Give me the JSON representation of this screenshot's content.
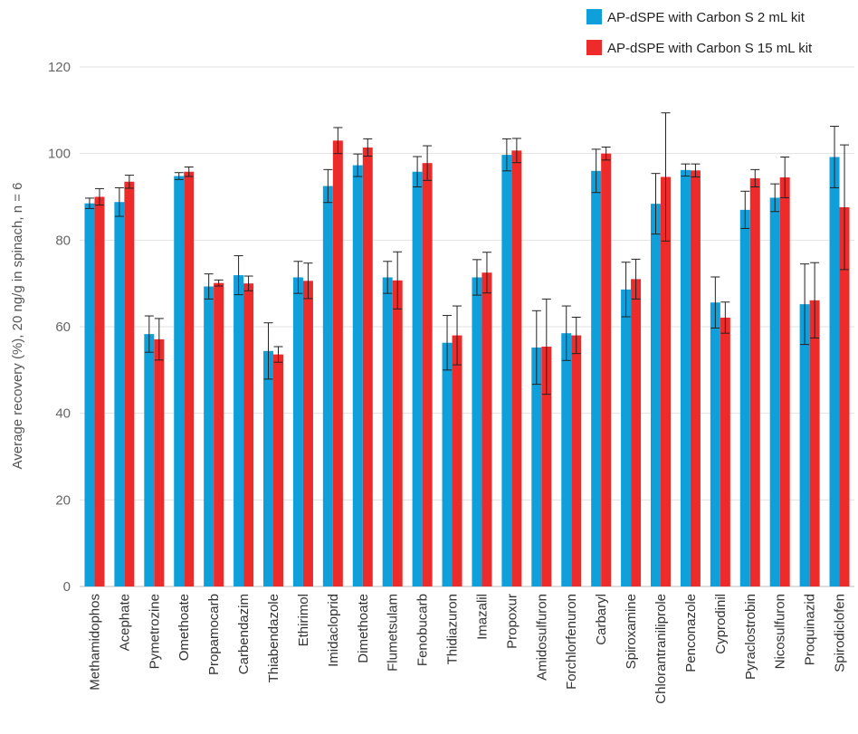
{
  "chart_data": {
    "type": "bar",
    "ylabel": "Average recovery (%), 20 ng/g in spinach, n = 6",
    "xlabel": "",
    "ylim": [
      0,
      120
    ],
    "yticks": [
      0,
      20,
      40,
      60,
      80,
      100,
      120
    ],
    "grid": true,
    "legend_position": "top-right",
    "error_bars": true,
    "categories": [
      "Methamidophos",
      "Acephate",
      "Pymetrozine",
      "Omethoate",
      "Propamocarb",
      "Carbendazim",
      "Thiabendazole",
      "Ethirimol",
      "Imidacloprid",
      "Dimethoate",
      "Flumetsulam",
      "Fenobucarb",
      "Thidiazuron",
      "Imazalil",
      "Propoxur",
      "Amidosulfuron",
      "Forchlorfenuron",
      "Carbaryl",
      "Spiroxamine",
      "Chlorantraniliprole",
      "Penconazole",
      "Cyprodinil",
      "Pyraclostrobin",
      "Nicosulfuron",
      "Proquinazid",
      "Spirodiclofen"
    ],
    "series": [
      {
        "name": "AP-dSPE with Carbon S 2 mL kit",
        "color": "#0f9fdb",
        "values": [
          88.5,
          88.8,
          58.3,
          94.8,
          69.3,
          71.9,
          54.4,
          71.4,
          92.5,
          97.3,
          71.4,
          95.8,
          56.3,
          71.4,
          99.7,
          55.2,
          58.5,
          96.0,
          68.6,
          88.4,
          96.2,
          65.6,
          87.0,
          89.8,
          65.2,
          99.2
        ],
        "errors": [
          1.2,
          3.3,
          4.2,
          0.8,
          2.9,
          4.5,
          6.5,
          3.7,
          3.8,
          2.6,
          3.7,
          3.5,
          6.3,
          4.1,
          3.7,
          8.5,
          6.3,
          5.0,
          6.3,
          7.0,
          1.4,
          5.9,
          4.3,
          3.2,
          9.3,
          7.1
        ]
      },
      {
        "name": "AP-dSPE with Carbon S 15 mL kit",
        "color": "#ee2b2b",
        "values": [
          90.0,
          93.5,
          57.1,
          95.8,
          70.1,
          70.0,
          53.6,
          70.6,
          103.0,
          101.4,
          70.7,
          97.8,
          58.0,
          72.5,
          100.7,
          55.4,
          58.0,
          100.0,
          71.0,
          94.6,
          96.1,
          62.1,
          94.3,
          94.5,
          66.1,
          87.6
        ],
        "errors": [
          1.9,
          1.5,
          4.8,
          1.1,
          0.7,
          1.7,
          1.8,
          4.1,
          3.0,
          2.0,
          6.6,
          4.0,
          6.8,
          4.7,
          2.8,
          11.0,
          4.2,
          1.5,
          4.6,
          14.8,
          1.5,
          3.6,
          2.0,
          4.7,
          8.7,
          14.4
        ]
      }
    ]
  }
}
